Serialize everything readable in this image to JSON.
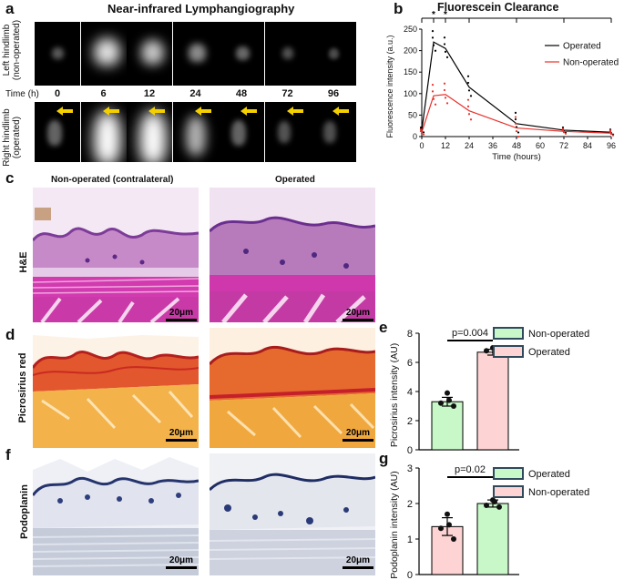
{
  "panel_a": {
    "label": "a",
    "title": "Near-infrared Lymphangiography",
    "row_left_label_1": "Left hindlimb",
    "row_left_label_2": "(non-operated)",
    "row_right_label_1": "Right hindlimb",
    "row_right_label_2": "(operated)",
    "time_label": "Time (h)",
    "times": [
      "0",
      "6",
      "12",
      "24",
      "48",
      "72",
      "96"
    ],
    "top_intensity": [
      0.15,
      0.85,
      0.7,
      0.4,
      0.22,
      0.12,
      0.08
    ],
    "bottom_intensity": [
      0.2,
      1.0,
      1.0,
      0.6,
      0.2,
      0.12,
      0.1
    ],
    "arrow_color": "#f4d000"
  },
  "panel_b": {
    "label": "b",
    "chart_data": {
      "type": "line",
      "title": "Fluorescein Clearance",
      "xlabel": "Time (hours)",
      "ylabel": "Fluorescence intensity (a.u.)",
      "xlim": [
        0,
        96
      ],
      "ylim": [
        0,
        250
      ],
      "xticks": [
        0,
        12,
        24,
        36,
        48,
        60,
        72,
        84,
        96
      ],
      "yticks": [
        0,
        50,
        100,
        150,
        200,
        250
      ],
      "legend_position": "top-right",
      "series": [
        {
          "name": "Operated",
          "color": "#000000",
          "x": [
            0,
            6,
            12,
            24,
            48,
            72,
            96
          ],
          "y": [
            15,
            220,
            205,
            115,
            30,
            15,
            10
          ]
        },
        {
          "name": "Non-operated",
          "color": "#e8322c",
          "x": [
            0,
            6,
            12,
            24,
            48,
            72,
            96
          ],
          "y": [
            10,
            95,
            98,
            60,
            20,
            12,
            8
          ]
        }
      ],
      "significance": [
        {
          "x": 6,
          "label": "*"
        },
        {
          "x": 12,
          "label": "*"
        }
      ],
      "bracket_ticks_x": [
        0,
        6,
        12,
        24,
        48,
        72,
        96
      ]
    }
  },
  "panel_c": {
    "label": "c",
    "col_left": "Non-operated (contralateral)",
    "col_right": "Operated",
    "stain": "H&E",
    "scale": "20μm"
  },
  "panel_d": {
    "label": "d",
    "stain": "Picrosirius red",
    "scale": "20μm"
  },
  "panel_e": {
    "label": "e",
    "chart_data": {
      "type": "bar",
      "categories": [
        "Non-operated",
        "Operated"
      ],
      "values": [
        3.3,
        6.7
      ],
      "errors": [
        0.3,
        0.2
      ],
      "points": [
        [
          3.9,
          3.2,
          3.0,
          3.4
        ],
        [
          7.0,
          6.8,
          6.5,
          6.7
        ]
      ],
      "colors": [
        "#c8f7c8",
        "#fdd3d3"
      ],
      "ylabel": "Picrosirius intensity (AU)",
      "ylim": [
        0,
        8
      ],
      "yticks": [
        0,
        2,
        4,
        6,
        8
      ],
      "pvalue": "p=0.004",
      "legend": [
        "Non-operated",
        "Operated"
      ],
      "legend_position": "top-right"
    }
  },
  "panel_f": {
    "label": "f",
    "stain": "Podoplanin",
    "scale": "20μm"
  },
  "panel_g": {
    "label": "g",
    "chart_data": {
      "type": "bar",
      "categories": [
        "Non-operated",
        "Operated"
      ],
      "values": [
        1.35,
        2.0
      ],
      "errors": [
        0.25,
        0.1
      ],
      "points": [
        [
          1.7,
          1.3,
          1.0,
          1.4
        ],
        [
          2.1,
          1.95,
          1.9,
          2.05
        ]
      ],
      "colors": [
        "#fdd3d3",
        "#c8f7c8"
      ],
      "ylabel": "Podoplanin intensity (AU)",
      "ylim": [
        0,
        3
      ],
      "yticks": [
        0,
        1,
        2,
        3
      ],
      "pvalue": "p=0.02",
      "legend": [
        "Operated",
        "Non-operated"
      ],
      "legend_position": "top-right"
    }
  }
}
